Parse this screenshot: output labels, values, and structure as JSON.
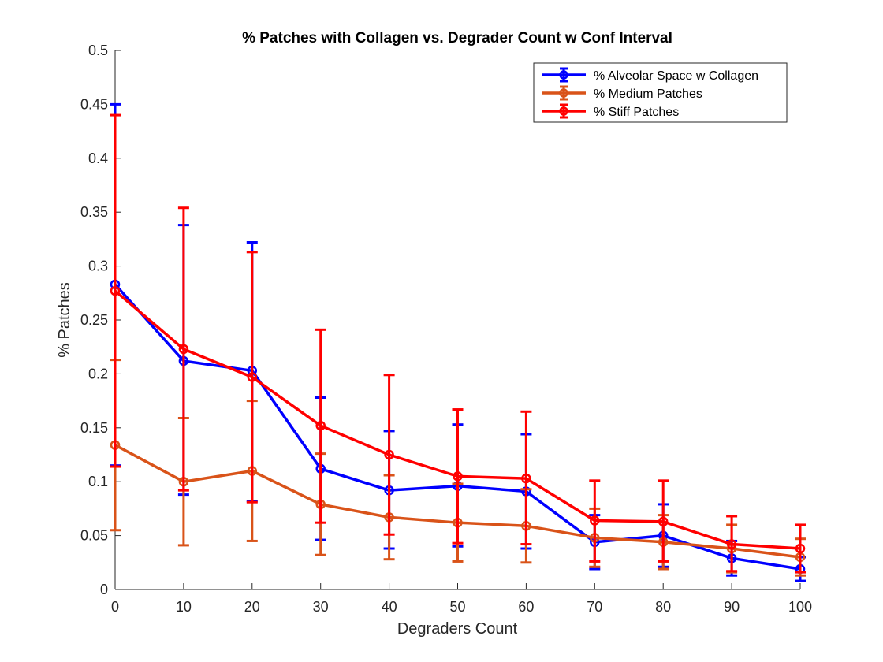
{
  "chart_data": {
    "type": "line",
    "title": "% Patches with Collagen vs. Degrader Count w Conf Interval",
    "xlabel": "Degraders Count",
    "ylabel": "% Patches",
    "xlim": [
      0,
      100
    ],
    "ylim": [
      0,
      0.5
    ],
    "xticks": [
      0,
      10,
      20,
      30,
      40,
      50,
      60,
      70,
      80,
      90,
      100
    ],
    "xtick_labels": [
      "0",
      "10",
      "20",
      "30",
      "40",
      "50",
      "60",
      "70",
      "80",
      "90",
      "100"
    ],
    "yticks": [
      0,
      0.05,
      0.1,
      0.15,
      0.2,
      0.25,
      0.3,
      0.35,
      0.4,
      0.45,
      0.5
    ],
    "ytick_labels": [
      "0",
      "0.05",
      "0.1",
      "0.15",
      "0.2",
      "0.25",
      "0.3",
      "0.35",
      "0.4",
      "0.45",
      "0.5"
    ],
    "grid": false,
    "legend_position": "top-right",
    "x": [
      0,
      10,
      20,
      30,
      40,
      50,
      60,
      70,
      80,
      90,
      100
    ],
    "series": [
      {
        "name": "% Alveolar Space w Collagen",
        "color": "#0000ff",
        "values": [
          0.283,
          0.212,
          0.203,
          0.112,
          0.092,
          0.096,
          0.091,
          0.044,
          0.05,
          0.029,
          0.019
        ],
        "lower": [
          0.115,
          0.088,
          0.082,
          0.046,
          0.038,
          0.04,
          0.038,
          0.019,
          0.021,
          0.013,
          0.008
        ],
        "upper": [
          0.45,
          0.338,
          0.322,
          0.178,
          0.147,
          0.153,
          0.144,
          0.069,
          0.079,
          0.045,
          0.03
        ]
      },
      {
        "name": "% Medium Patches",
        "color": "#d95319",
        "values": [
          0.134,
          0.1,
          0.11,
          0.079,
          0.067,
          0.062,
          0.059,
          0.048,
          0.044,
          0.038,
          0.03
        ],
        "lower": [
          0.055,
          0.041,
          0.045,
          0.032,
          0.028,
          0.026,
          0.025,
          0.021,
          0.019,
          0.016,
          0.013
        ],
        "upper": [
          0.213,
          0.159,
          0.175,
          0.126,
          0.106,
          0.098,
          0.093,
          0.075,
          0.069,
          0.06,
          0.047
        ]
      },
      {
        "name": "% Stiff Patches",
        "color": "#ff0000",
        "values": [
          0.277,
          0.223,
          0.197,
          0.152,
          0.125,
          0.105,
          0.103,
          0.064,
          0.063,
          0.042,
          0.038
        ],
        "lower": [
          0.114,
          0.092,
          0.081,
          0.062,
          0.051,
          0.043,
          0.042,
          0.026,
          0.026,
          0.017,
          0.016
        ],
        "upper": [
          0.44,
          0.354,
          0.313,
          0.241,
          0.199,
          0.167,
          0.165,
          0.101,
          0.101,
          0.068,
          0.06
        ]
      }
    ]
  }
}
